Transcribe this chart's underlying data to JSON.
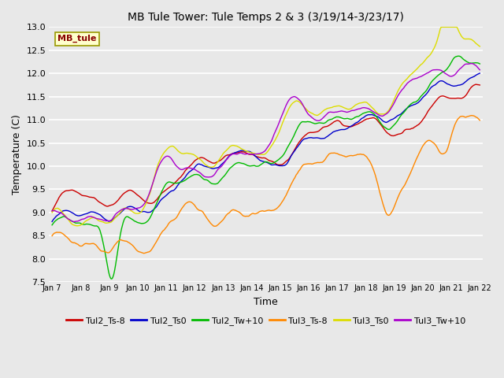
{
  "title": "MB Tule Tower: Tule Temps 2 & 3 (3/19/14-3/23/17)",
  "xlabel": "Time",
  "ylabel": "Temperature (C)",
  "ylim": [
    7.5,
    13.0
  ],
  "yticks": [
    7.5,
    8.0,
    8.5,
    9.0,
    9.5,
    10.0,
    10.5,
    11.0,
    11.5,
    12.0,
    12.5,
    13.0
  ],
  "xtick_labels": [
    "Jan 7",
    "Jan 8",
    "Jan 9",
    "Jan 10",
    "Jan 11",
    "Jan 12",
    "Jan 13",
    "Jan 14",
    "Jan 15",
    "Jan 16",
    "Jan 17",
    "Jan 18",
    "Jan 19",
    "Jan 20",
    "Jan 21",
    "Jan 22"
  ],
  "series_colors": [
    "#cc0000",
    "#0000cc",
    "#00bb00",
    "#ff8800",
    "#dddd00",
    "#aa00cc"
  ],
  "series_labels": [
    "Tul2_Ts-8",
    "Tul2_Ts0",
    "Tul2_Tw+10",
    "Tul3_Ts-8",
    "Tul3_Ts0",
    "Tul3_Tw+10"
  ],
  "legend_box_color": "#ffffcc",
  "legend_box_edge": "#999900",
  "watermark_text": "MB_tule",
  "watermark_color": "#880000",
  "background_color": "#e8e8e8",
  "grid_color": "#ffffff",
  "n_points": 500,
  "figsize": [
    6.4,
    4.8
  ],
  "dpi": 100
}
